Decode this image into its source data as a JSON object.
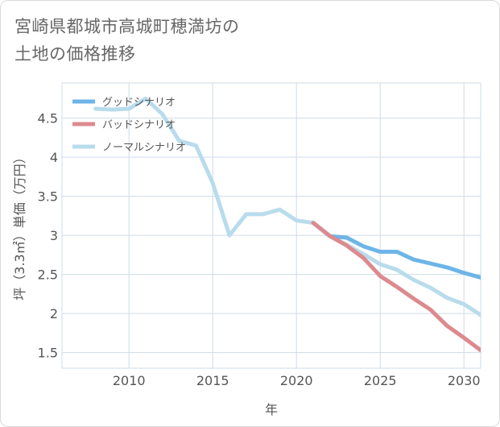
{
  "title_line1": "宮崎県都城市高城町穂満坊の",
  "title_line2": "土地の価格推移",
  "chart_data": {
    "type": "line",
    "xlabel": "年",
    "ylabel": "坪（3.3㎡）単価（万円）",
    "xlim": [
      2006,
      2031
    ],
    "ylim": [
      1.3,
      4.95
    ],
    "x_ticks": [
      "2010",
      "2015",
      "2020",
      "2025",
      "2030"
    ],
    "y_ticks": [
      "1.5",
      "2",
      "2.5",
      "3",
      "3.5",
      "4",
      "4.5"
    ],
    "legend_position": "top-left",
    "grid": true,
    "series": [
      {
        "name": "グッドシナリオ",
        "color": "#6db5e8",
        "x": [
          2021,
          2022,
          2023,
          2024,
          2025,
          2026,
          2027,
          2028,
          2029,
          2030,
          2031
        ],
        "y": [
          3.16,
          2.99,
          2.97,
          2.86,
          2.79,
          2.79,
          2.69,
          2.64,
          2.59,
          2.52,
          2.46
        ]
      },
      {
        "name": "バッドシナリオ",
        "color": "#dc8a8f",
        "x": [
          2021,
          2022,
          2023,
          2024,
          2025,
          2026,
          2027,
          2028,
          2029,
          2030,
          2031
        ],
        "y": [
          3.16,
          2.99,
          2.87,
          2.71,
          2.48,
          2.34,
          2.19,
          2.05,
          1.84,
          1.69,
          1.53
        ]
      },
      {
        "name": "ノーマルシナリオ",
        "color": "#b9dcec",
        "x": [
          2008,
          2009,
          2010,
          2011,
          2012,
          2013,
          2014,
          2015,
          2016,
          2017,
          2018,
          2019,
          2020,
          2021,
          2022,
          2023,
          2024,
          2025,
          2026,
          2027,
          2028,
          2029,
          2030,
          2031
        ],
        "y": [
          4.62,
          4.61,
          4.62,
          4.75,
          4.55,
          4.21,
          4.15,
          3.67,
          3.0,
          3.27,
          3.27,
          3.33,
          3.19,
          3.16,
          2.99,
          2.88,
          2.76,
          2.63,
          2.56,
          2.43,
          2.33,
          2.2,
          2.12,
          1.98
        ]
      }
    ]
  }
}
